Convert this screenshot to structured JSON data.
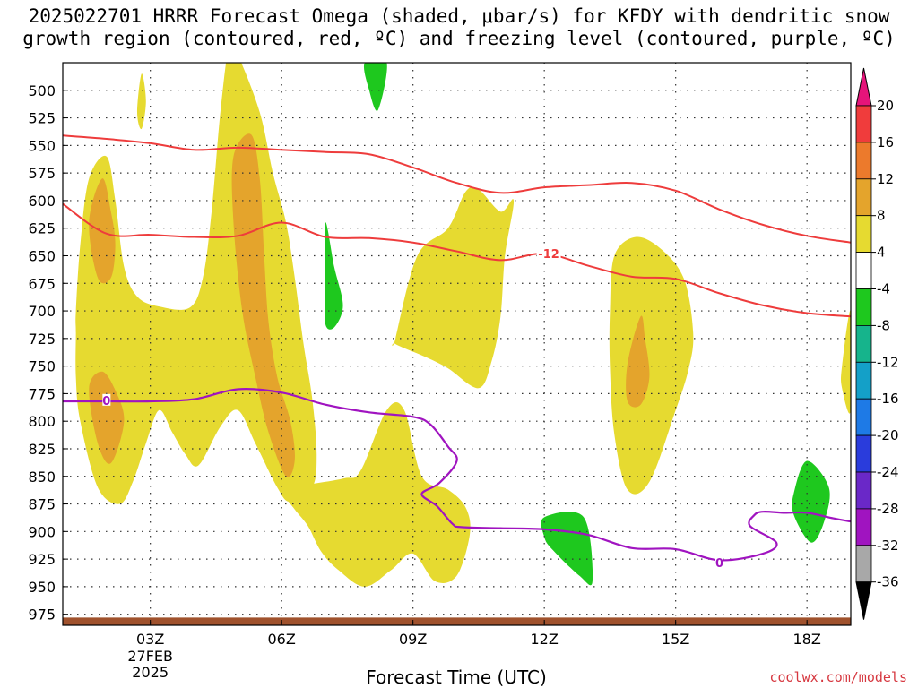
{
  "title": {
    "line1": "2025022701 HRRR Forecast Omega (shaded, μbar/s) for KFDY with dendritic snow",
    "line2": "growth region (contoured, red, ºC) and freezing level (contoured, purple, ºC)"
  },
  "credit": "coolwx.com/models",
  "chart_data": {
    "type": "time-height cross section",
    "title": "2025022701 HRRR Forecast Omega (shaded, μbar/s) for KFDY with dendritic snow growth region (contoured, red, ºC) and freezing level (contoured, purple, ºC)",
    "xlabel": "Forecast Time (UTC)",
    "ylabel": "",
    "x_range_hours": [
      1,
      19
    ],
    "y_range_mb": [
      475,
      985
    ],
    "y_inverted": true,
    "grid": true,
    "x_ticks": [
      {
        "hour": 3,
        "label": "03Z",
        "sub1": "27FEB",
        "sub2": "2025"
      },
      {
        "hour": 6,
        "label": "06Z",
        "sub1": "",
        "sub2": ""
      },
      {
        "hour": 9,
        "label": "09Z",
        "sub1": "",
        "sub2": ""
      },
      {
        "hour": 12,
        "label": "12Z",
        "sub1": "",
        "sub2": ""
      },
      {
        "hour": 15,
        "label": "15Z",
        "sub1": "",
        "sub2": ""
      },
      {
        "hour": 18,
        "label": "18Z",
        "sub1": "",
        "sub2": ""
      }
    ],
    "y_ticks": [
      500,
      525,
      550,
      575,
      600,
      625,
      650,
      675,
      700,
      725,
      750,
      775,
      800,
      825,
      850,
      875,
      900,
      925,
      950,
      975
    ],
    "colorbar": {
      "labels": [
        "20",
        "16",
        "12",
        "8",
        "4",
        "-4",
        "-8",
        "-12",
        "-16",
        "-20",
        "-24",
        "-28",
        "-32",
        "-36"
      ],
      "bins": [
        {
          "lo": 16,
          "hi": 20,
          "color": "#f03c3c"
        },
        {
          "lo": 12,
          "hi": 16,
          "color": "#ec7a2c"
        },
        {
          "lo": 8,
          "hi": 12,
          "color": "#e4a42c"
        },
        {
          "lo": 4,
          "hi": 8,
          "color": "#e6da30"
        },
        {
          "lo": -4,
          "hi": 4,
          "color": "#ffffff"
        },
        {
          "lo": -8,
          "hi": -4,
          "color": "#1ec81e"
        },
        {
          "lo": -12,
          "hi": -8,
          "color": "#16b48c"
        },
        {
          "lo": -16,
          "hi": -12,
          "color": "#14a0c8"
        },
        {
          "lo": -20,
          "hi": -16,
          "color": "#1e7ae6"
        },
        {
          "lo": -24,
          "hi": -20,
          "color": "#2a3cdc"
        },
        {
          "lo": -28,
          "hi": -24,
          "color": "#6a28c8"
        },
        {
          "lo": -32,
          "hi": -28,
          "color": "#a014c0"
        },
        {
          "lo": -36,
          "hi": -32,
          "color": "#a8a8a8"
        }
      ],
      "max_color": "#e6147a",
      "min_color": "#000000"
    },
    "contours": {
      "dgz_top_minus12_color": "#ee3c3c",
      "dgz_bottom_color": "#ee3c3c",
      "freezing_color": "#a014c0",
      "labels": [
        {
          "text": "-12",
          "hour": 12.1,
          "mb": 648,
          "color": "#ee3c3c"
        },
        {
          "text": "0",
          "hour": 2.0,
          "mb": 781,
          "color": "#a014c0"
        },
        {
          "text": "0",
          "hour": 16.0,
          "mb": 928,
          "color": "#a014c0"
        }
      ],
      "dgz_upper": [
        [
          1,
          541
        ],
        [
          2,
          544
        ],
        [
          3,
          548
        ],
        [
          4,
          554
        ],
        [
          5,
          552
        ],
        [
          6,
          554
        ],
        [
          7,
          556
        ],
        [
          8,
          558
        ],
        [
          9,
          570
        ],
        [
          10,
          584
        ],
        [
          11,
          593
        ],
        [
          12,
          588
        ],
        [
          13,
          586
        ],
        [
          14,
          584
        ],
        [
          15,
          591
        ],
        [
          16,
          608
        ],
        [
          17,
          622
        ],
        [
          18,
          632
        ],
        [
          19,
          638
        ]
      ],
      "dgz_lower": [
        [
          1,
          603
        ],
        [
          2,
          630
        ],
        [
          3,
          631
        ],
        [
          4,
          633
        ],
        [
          5,
          632
        ],
        [
          6,
          620
        ],
        [
          7,
          633
        ],
        [
          8,
          634
        ],
        [
          9,
          638
        ],
        [
          10,
          646
        ],
        [
          11,
          654
        ],
        [
          12,
          648
        ],
        [
          13,
          659
        ],
        [
          14,
          669
        ],
        [
          15,
          671
        ],
        [
          16,
          684
        ],
        [
          17,
          695
        ],
        [
          18,
          702
        ],
        [
          19,
          705
        ]
      ],
      "freezing_level": [
        [
          1,
          782
        ],
        [
          2,
          782
        ],
        [
          3,
          782
        ],
        [
          4,
          780
        ],
        [
          5,
          771
        ],
        [
          6,
          774
        ],
        [
          7,
          785
        ],
        [
          8,
          792
        ],
        [
          9,
          796
        ],
        [
          9.4,
          803
        ],
        [
          9.8,
          823
        ],
        [
          10,
          836
        ],
        [
          9.6,
          856
        ],
        [
          9.2,
          866
        ],
        [
          9.55,
          877
        ],
        [
          9.9,
          893
        ],
        [
          10.1,
          896
        ],
        [
          11,
          897
        ],
        [
          12,
          898
        ],
        [
          13,
          903
        ],
        [
          14,
          915
        ],
        [
          15,
          916
        ],
        [
          16,
          926
        ],
        [
          17,
          920
        ],
        [
          17.3,
          910
        ],
        [
          16.7,
          895
        ],
        [
          16.8,
          885
        ],
        [
          17.0,
          882
        ],
        [
          17.5,
          883
        ],
        [
          18,
          883
        ],
        [
          18.6,
          888
        ],
        [
          19,
          891
        ]
      ]
    },
    "omega_regions": [
      {
        "value": 4,
        "color": "#e6da30",
        "points": [
          [
            1.3,
            700
          ],
          [
            1.4,
            640
          ],
          [
            1.6,
            580
          ],
          [
            2.0,
            560
          ],
          [
            2.2,
            600
          ],
          [
            2.4,
            660
          ],
          [
            2.7,
            687
          ],
          [
            3.2,
            696
          ],
          [
            3.9,
            697
          ],
          [
            4.2,
            670
          ],
          [
            4.4,
            610
          ],
          [
            4.6,
            520
          ],
          [
            4.8,
            460
          ],
          [
            5.0,
            468
          ],
          [
            5.5,
            520
          ],
          [
            5.8,
            575
          ],
          [
            6.1,
            620
          ],
          [
            6.3,
            670
          ],
          [
            6.5,
            730
          ],
          [
            6.7,
            780
          ],
          [
            6.8,
            830
          ],
          [
            6.7,
            860
          ],
          [
            6.2,
            873
          ],
          [
            5.9,
            860
          ],
          [
            5.4,
            820
          ],
          [
            5.0,
            790
          ],
          [
            4.6,
            805
          ],
          [
            4.1,
            840
          ],
          [
            3.8,
            830
          ],
          [
            3.5,
            810
          ],
          [
            3.2,
            790
          ],
          [
            2.9,
            820
          ],
          [
            2.6,
            855
          ],
          [
            2.3,
            875
          ],
          [
            1.8,
            860
          ],
          [
            1.4,
            800
          ],
          [
            1.3,
            760
          ],
          [
            1.3,
            720
          ]
        ]
      },
      {
        "value": 8,
        "color": "#e4a42c",
        "points": [
          [
            1.6,
            620
          ],
          [
            1.9,
            580
          ],
          [
            2.1,
            610
          ],
          [
            2.2,
            640
          ],
          [
            2.1,
            670
          ],
          [
            1.8,
            670
          ]
        ]
      },
      {
        "value": 8,
        "color": "#e4a42c",
        "points": [
          [
            1.6,
            770
          ],
          [
            1.9,
            755
          ],
          [
            2.2,
            772
          ],
          [
            2.4,
            800
          ],
          [
            2.1,
            838
          ],
          [
            1.8,
            820
          ]
        ]
      },
      {
        "value": 8,
        "color": "#e4a42c",
        "points": [
          [
            4.9,
            560
          ],
          [
            5.3,
            540
          ],
          [
            5.5,
            580
          ],
          [
            5.6,
            650
          ],
          [
            5.7,
            710
          ],
          [
            5.9,
            760
          ],
          [
            6.2,
            800
          ],
          [
            6.3,
            835
          ],
          [
            6.1,
            850
          ],
          [
            5.7,
            810
          ],
          [
            5.4,
            760
          ],
          [
            5.1,
            700
          ],
          [
            4.9,
            620
          ]
        ]
      },
      {
        "value": 4,
        "color": "#e6da30",
        "points": [
          [
            2.8,
            485
          ],
          [
            2.9,
            510
          ],
          [
            2.8,
            535
          ],
          [
            2.7,
            520
          ]
        ]
      },
      {
        "value": 4,
        "color": "#e6da30",
        "points": [
          [
            8.6,
            725
          ],
          [
            9.1,
            650
          ],
          [
            9.8,
            625
          ],
          [
            10.2,
            592
          ],
          [
            10.5,
            590
          ],
          [
            11,
            610
          ],
          [
            11.3,
            600
          ],
          [
            11.1,
            650
          ],
          [
            11,
            705
          ],
          [
            10.8,
            745
          ],
          [
            10.5,
            770
          ],
          [
            9.8,
            752
          ],
          [
            9.3,
            742
          ],
          [
            8.6,
            730
          ]
        ]
      },
      {
        "value": 4,
        "color": "#e6da30",
        "points": [
          [
            6.1,
            868
          ],
          [
            6.3,
            860
          ],
          [
            7.4,
            852
          ],
          [
            7.8,
            845
          ],
          [
            8.4,
            790
          ],
          [
            8.8,
            790
          ],
          [
            9.2,
            850
          ],
          [
            9.8,
            862
          ],
          [
            10.2,
            878
          ],
          [
            10.3,
            902
          ],
          [
            10.0,
            940
          ],
          [
            9.5,
            945
          ],
          [
            9.0,
            920
          ],
          [
            8.5,
            935
          ],
          [
            7.9,
            950
          ],
          [
            7.3,
            935
          ],
          [
            6.9,
            918
          ],
          [
            6.6,
            895
          ],
          [
            6.3,
            880
          ]
        ]
      },
      {
        "value": 4,
        "color": "#e6da30",
        "points": [
          [
            13.6,
            650
          ],
          [
            14.1,
            633
          ],
          [
            14.7,
            645
          ],
          [
            15.2,
            672
          ],
          [
            15.4,
            720
          ],
          [
            15.3,
            752
          ],
          [
            15.0,
            790
          ],
          [
            14.4,
            855
          ],
          [
            13.9,
            862
          ],
          [
            13.6,
            812
          ],
          [
            13.5,
            752
          ],
          [
            13.5,
            700
          ]
        ]
      },
      {
        "value": 8,
        "color": "#e4a42c",
        "points": [
          [
            13.9,
            748
          ],
          [
            14.2,
            705
          ],
          [
            14.3,
            725
          ],
          [
            14.4,
            760
          ],
          [
            14.2,
            785
          ],
          [
            13.9,
            782
          ]
        ]
      },
      {
        "value": 4,
        "color": "#e6da30",
        "points": [
          [
            18.8,
            750
          ],
          [
            19.0,
            700
          ],
          [
            19.0,
            790
          ],
          [
            18.8,
            770
          ]
        ]
      },
      {
        "value": -4,
        "color": "#1ec81e",
        "points": [
          [
            7.9,
            475
          ],
          [
            8.4,
            475
          ],
          [
            8.2,
            518
          ],
          [
            8.0,
            500
          ]
        ]
      },
      {
        "value": -4,
        "color": "#1ec81e",
        "points": [
          [
            7.0,
            620
          ],
          [
            7.2,
            660
          ],
          [
            7.4,
            695
          ],
          [
            7.2,
            715
          ],
          [
            7.0,
            712
          ],
          [
            7.0,
            680
          ]
        ]
      },
      {
        "value": -4,
        "color": "#1ec81e",
        "points": [
          [
            12,
            887
          ],
          [
            12.9,
            887
          ],
          [
            13.1,
            945
          ],
          [
            12.8,
            940
          ],
          [
            12.2,
            917
          ],
          [
            12,
            905
          ]
        ]
      },
      {
        "value": -4,
        "color": "#1ec81e",
        "points": [
          [
            17.7,
            865
          ],
          [
            18.0,
            836
          ],
          [
            18.5,
            860
          ],
          [
            18.4,
            890
          ],
          [
            18.1,
            910
          ],
          [
            17.7,
            885
          ]
        ]
      }
    ],
    "terrain": {
      "color": "#a0522d",
      "from_mb": 978
    }
  },
  "xaxis_title": "Forecast Time (UTC)"
}
